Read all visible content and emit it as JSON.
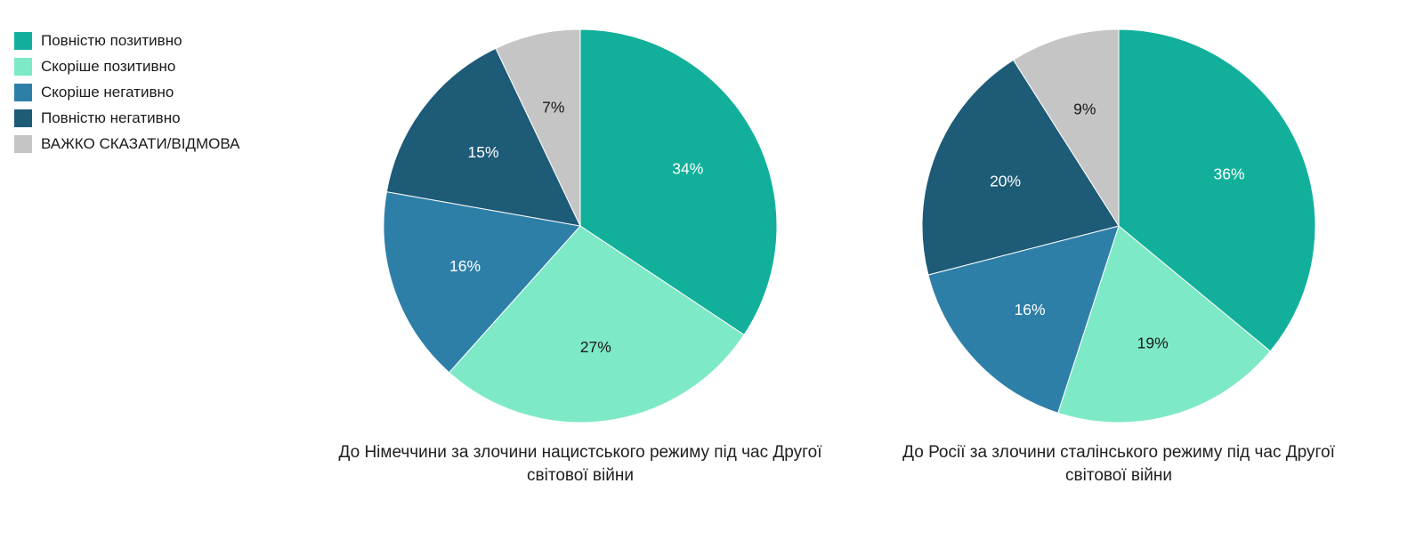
{
  "legend": {
    "items": [
      {
        "label": "Повністю позитивно",
        "color": "#12b09a"
      },
      {
        "label": "Скоріше позитивно",
        "color": "#7de9c6"
      },
      {
        "label": "Скоріше негативно",
        "color": "#2e7fa8"
      },
      {
        "label": "Повністю негативно",
        "color": "#1d5b77"
      },
      {
        "label": "ВАЖКО СКАЗАТИ/ВІДМОВА",
        "color": "#c5c5c5"
      }
    ]
  },
  "chart_data": [
    {
      "type": "pie",
      "title": "До Німеччини за злочини нацистського режиму під час Другої світової війни",
      "labels": [
        "Повністю позитивно",
        "Скоріше позитивно",
        "Скоріше негативно",
        "Повністю негативно",
        "ВАЖКО СКАЗАТИ/ВІДМОВА"
      ],
      "values": [
        34,
        27,
        16,
        15,
        7
      ],
      "value_labels": [
        "34%",
        "27%",
        "16%",
        "15%",
        "7%"
      ],
      "colors": [
        "#12b09a",
        "#7de9c6",
        "#2e7fa8",
        "#1d5b77",
        "#c5c5c5"
      ],
      "text_colors": [
        "#ffffff",
        "#1a1a1a",
        "#ffffff",
        "#ffffff",
        "#1a1a1a"
      ],
      "start_angle_deg": -90,
      "direction": "clockwise",
      "legend_position": "top-left"
    },
    {
      "type": "pie",
      "title": "До Росії за злочини сталінського режиму під час Другої світової війни",
      "labels": [
        "Повністю позитивно",
        "Скоріше позитивно",
        "Скоріше негативно",
        "Повністю негативно",
        "ВАЖКО СКАЗАТИ/ВІДМОВА"
      ],
      "values": [
        36,
        19,
        16,
        20,
        9
      ],
      "value_labels": [
        "36%",
        "19%",
        "16%",
        "20%",
        "9%"
      ],
      "colors": [
        "#12b09a",
        "#7de9c6",
        "#2e7fa8",
        "#1d5b77",
        "#c5c5c5"
      ],
      "text_colors": [
        "#ffffff",
        "#1a1a1a",
        "#ffffff",
        "#ffffff",
        "#1a1a1a"
      ],
      "start_angle_deg": -90,
      "direction": "clockwise",
      "legend_position": "top-left"
    }
  ]
}
